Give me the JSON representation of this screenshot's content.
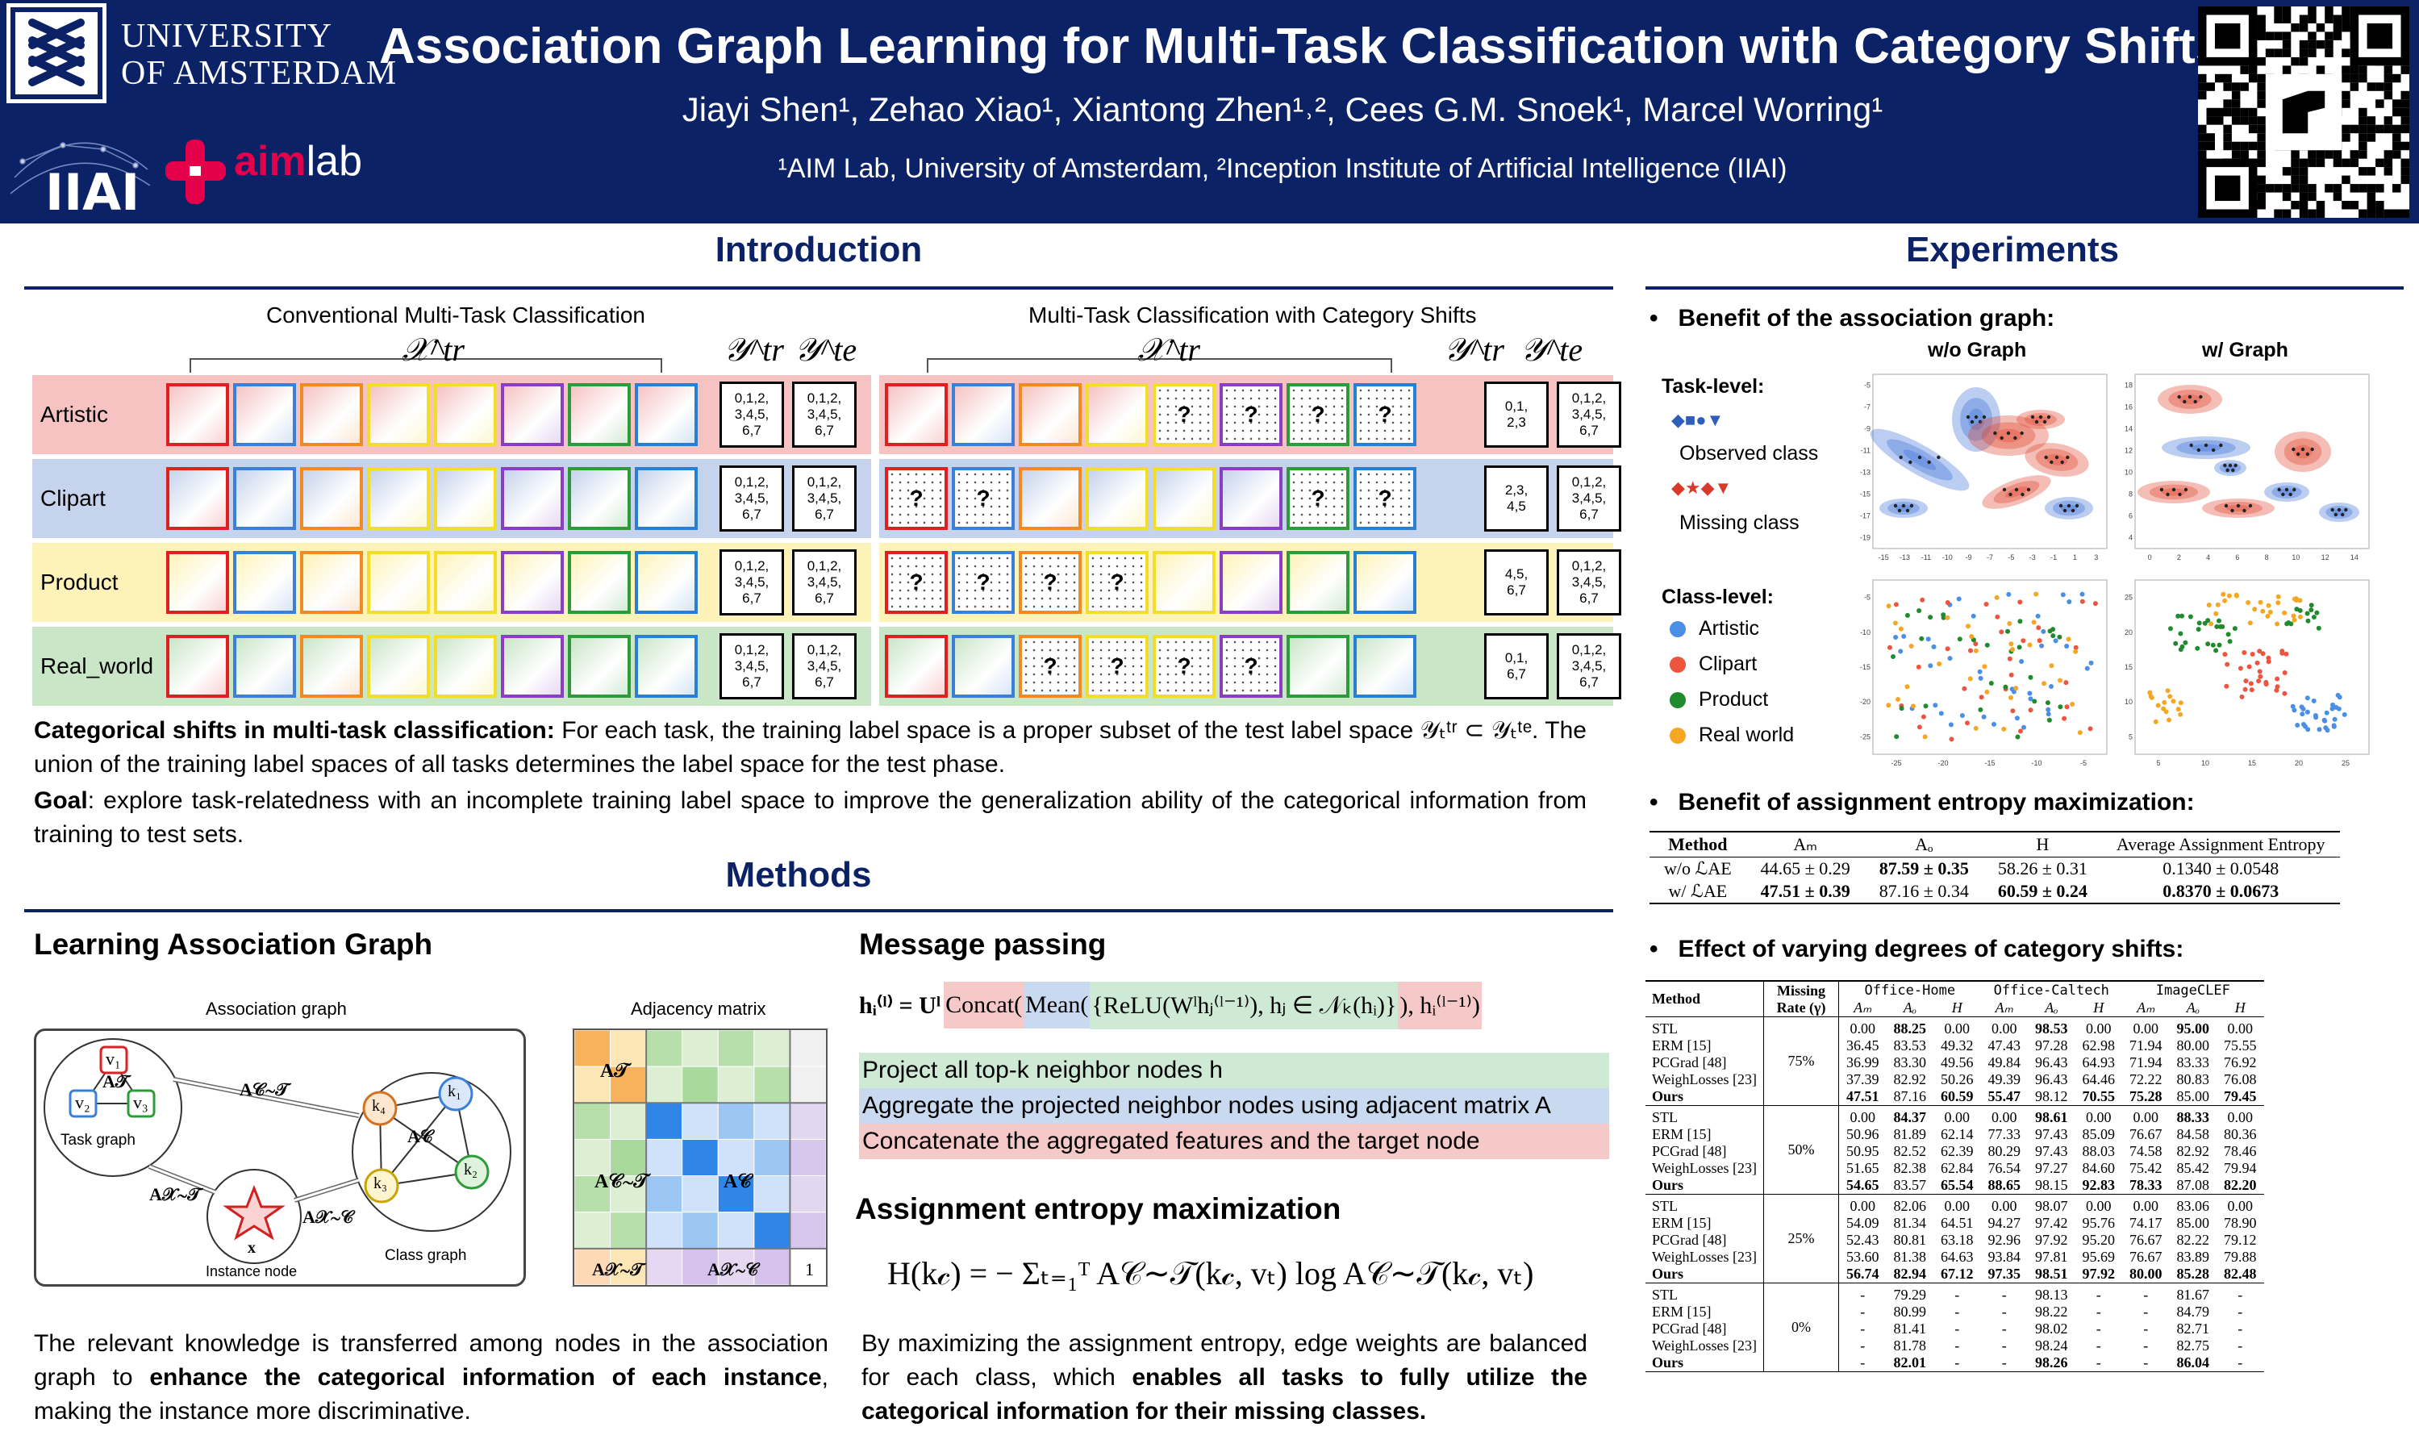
{
  "header": {
    "university": "UNIVERSITY OF AMSTERDAM",
    "university_line1": "UNIVERSITY",
    "university_line2": "OF AMSTERDAM",
    "iiai_logo": "IIAI",
    "aimlab_aim": "aim",
    "aimlab_lab": "lab",
    "title": "Association Graph Learning for Multi-Task Classification with Category Shifts",
    "authors": "Jiayi Shen¹, Zehao Xiao¹, Xiantong Zhen¹˒², Cees G.M. Snoek¹, Marcel Worring¹",
    "affiliations": "¹AIM Lab, University of Amsterdam, ²Inception Institute of Artificial Intelligence (IIAI)",
    "qr_icon": "qr-code-icon"
  },
  "introduction": {
    "title": "Introduction",
    "left_panel_title": "Conventional Multi-Task Classification",
    "right_panel_title": "Multi-Task Classification with Category Shifts",
    "x_label": "𝒳^tr",
    "ytr_label": "𝒴^tr",
    "yte_label": "𝒴^te",
    "tasks": [
      {
        "name": "Artistic",
        "color": "#f6c2c2",
        "conv_tr": "0,1,2,\n3,4,5,\n6,7",
        "conv_te": "0,1,2,\n3,4,5,\n6,7",
        "shift_tr": "0,1,\n2,3",
        "shift_te": "0,1,2,\n3,4,5,\n6,7",
        "missing": [
          4,
          5,
          6,
          7
        ]
      },
      {
        "name": "Clipart",
        "color": "#c6d3ec",
        "conv_tr": "0,1,2,\n3,4,5,\n6,7",
        "conv_te": "0,1,2,\n3,4,5,\n6,7",
        "shift_tr": "2,3,\n4,5",
        "shift_te": "0,1,2,\n3,4,5,\n6,7",
        "missing": [
          0,
          1,
          6,
          7
        ]
      },
      {
        "name": "Product",
        "color": "#fdf3b8",
        "conv_tr": "0,1,2,\n3,4,5,\n6,7",
        "conv_te": "0,1,2,\n3,4,5,\n6,7",
        "shift_tr": "4,5,\n6,7",
        "shift_te": "0,1,2,\n3,4,5,\n6,7",
        "missing": [
          0,
          1,
          2,
          3
        ]
      },
      {
        "name": "Real_world",
        "color": "#c9e6c7",
        "conv_tr": "0,1,2,\n3,4,5,\n6,7",
        "conv_te": "0,1,2,\n3,4,5,\n6,7",
        "shift_tr": "0,1,\n6,7",
        "shift_te": "0,1,2,\n3,4,5,\n6,7",
        "missing": [
          2,
          3,
          4,
          5
        ]
      }
    ],
    "frame_colors": [
      "#e02020",
      "#3c7fd6",
      "#f08a24",
      "#f2dd2b",
      "#f2dd2b",
      "#8a3fc0",
      "#2e9b3b",
      "#2b7fd0"
    ],
    "question_mark": "?",
    "para1_bold": "Categorical shifts in multi-task classification:",
    "para1_text": "For each task, the training label space is a proper subset of the test label space 𝒴ₜᵗʳ ⊂ 𝒴ₜᵗᵉ. The union of the training label spaces of all tasks determines the label space for the test phase.",
    "para2_bold": "Goal",
    "para2_text": ": explore task-relatedness with an incomplete training label space to improve the generalization ability of the categorical information from training to test sets."
  },
  "methods": {
    "title": "Methods",
    "lag_title": "Learning Association Graph",
    "assoc_graph_title": "Association graph",
    "adjacency_title": "Adjacency matrix",
    "task_graph_label": "Task graph",
    "class_graph_label": "Class graph",
    "instance_node_label": "Instance node",
    "node_v1": "v₁",
    "node_v2": "v₂",
    "node_v3": "v₃",
    "node_k1": "k₁",
    "node_k2": "k₂",
    "node_k3": "k₃",
    "node_k4": "k₄",
    "node_x": "x",
    "edge_ct": "A𝒞∼𝒯",
    "edge_xt": "A𝒳∼𝒯",
    "edge_xc": "A𝒳∼𝒞",
    "a_t": "A𝒯",
    "a_c": "A𝒞",
    "adj_at": "A𝒯",
    "adj_act": "A𝒞∼𝒯",
    "adj_ac": "A𝒞",
    "adj_axt": "A𝒳∼𝒯",
    "adj_axc": "A𝒳∼𝒞",
    "adj_one": "1",
    "lag_text_1": "The relevant knowledge is transferred among nodes in the association graph to ",
    "lag_text_bold": "enhance the categorical information of each instance",
    "lag_text_2": ", making the instance more discriminative.",
    "mp_title": "Message passing",
    "mp_formula_lhs": "hᵢ⁽ˡ⁾ = Uˡ",
    "mp_concat": "Concat(",
    "mp_mean": "Mean(",
    "mp_relu": "{ReLU(Wˡhⱼ⁽ˡ⁻¹⁾), hⱼ ∈ 𝒩ₖ(hᵢ)}",
    "mp_tail": "), hᵢ⁽ˡ⁻¹⁾)",
    "mp_item1": "Project all top-k neighbor nodes h",
    "mp_item2": "Aggregate the projected neighbor nodes using adjacent matrix A",
    "mp_item3": "Concatenate the aggregated features and the target node",
    "mp_item_colors": [
      "#cfead4",
      "#c9d9ef",
      "#f6c9c9"
    ],
    "aem_title": "Assignment entropy maximization",
    "aem_formula": "H(k𝒸) = − Σₜ₌₁ᵀ A𝒞∼𝒯(k𝒸, vₜ) log A𝒞∼𝒯(k𝒸, vₜ)",
    "aem_text_1": "By maximizing the assignment entropy, edge weights are balanced for each class, which ",
    "aem_text_bold": "enables all tasks to fully utilize the categorical information for their missing classes."
  },
  "experiments": {
    "title": "Experiments",
    "bullet1": "Benefit of the association graph:",
    "wo_graph": "w/o Graph",
    "w_graph": "w/ Graph",
    "task_level": "Task-level:",
    "observed_class": "Observed class",
    "missing_class": "Missing class",
    "class_level": "Class-level:",
    "legend": [
      {
        "label": "Artistic",
        "color": "#4a8ee6"
      },
      {
        "label": "Clipart",
        "color": "#ee5540"
      },
      {
        "label": "Product",
        "color": "#1f8a2e"
      },
      {
        "label": "Real world",
        "color": "#f5a623"
      }
    ],
    "task_plot_wo_x": [
      "-15",
      "-13",
      "-11",
      "-10",
      "-9",
      "-7",
      "-5",
      "-3",
      "-1",
      "1",
      "3"
    ],
    "task_plot_wo_y": [
      "-5",
      "-7",
      "-9",
      "-11",
      "-13",
      "-15",
      "-17",
      "-19"
    ],
    "task_plot_w_x": [
      "0",
      "2",
      "4",
      "6",
      "8",
      "10",
      "12",
      "14"
    ],
    "task_plot_w_y": [
      "18",
      "16",
      "14",
      "12",
      "10",
      "8",
      "6",
      "4"
    ],
    "class_plot_wo_x": [
      "-25",
      "-20",
      "-15",
      "-10",
      "-5"
    ],
    "class_plot_wo_y": [
      "-5",
      "-10",
      "-15",
      "-20",
      "-25"
    ],
    "class_plot_w_x": [
      "5",
      "10",
      "15",
      "20",
      "25"
    ],
    "class_plot_w_y": [
      "25",
      "20",
      "15",
      "10",
      "5"
    ],
    "bullet2": "Benefit of assignment entropy maximization:",
    "ent_table": {
      "headers": [
        "Method",
        "Aₘ",
        "Aₒ",
        "H",
        "Average Assignment Entropy"
      ],
      "rows": [
        [
          "w/o ℒAE",
          "44.65 ± 0.29",
          "87.59 ± 0.35",
          "58.26 ± 0.31",
          "0.1340 ± 0.0548"
        ],
        [
          "w/ ℒAE",
          "47.51 ± 0.39",
          "87.16 ± 0.34",
          "60.59 ± 0.24",
          "0.8370 ± 0.0673"
        ]
      ]
    },
    "bullet3": "Effect of varying degrees of category shifts:",
    "shift_table": {
      "col_method": "Method",
      "col_missing": "Missing Rate (γ)",
      "datasets": [
        "Office-Home",
        "Office-Caltech",
        "ImageCLEF"
      ],
      "metrics": [
        "Aₘ",
        "Aₒ",
        "H"
      ],
      "groups": [
        {
          "rate": "75%",
          "rows": [
            [
              "STL",
              "0.00",
              "88.25",
              "0.00",
              "0.00",
              "98.53",
              "0.00",
              "0.00",
              "95.00",
              "0.00"
            ],
            [
              "ERM [15]",
              "36.45",
              "83.53",
              "49.32",
              "47.43",
              "97.28",
              "62.98",
              "71.94",
              "80.00",
              "75.55"
            ],
            [
              "PCGrad [48]",
              "36.99",
              "83.30",
              "49.56",
              "49.84",
              "96.43",
              "64.93",
              "71.94",
              "83.33",
              "76.92"
            ],
            [
              "WeighLosses [23]",
              "37.39",
              "82.92",
              "50.26",
              "49.39",
              "96.43",
              "64.46",
              "72.22",
              "80.83",
              "76.08"
            ],
            [
              "Ours",
              "47.51",
              "87.16",
              "60.59",
              "55.47",
              "98.12",
              "70.55",
              "75.28",
              "85.00",
              "79.45"
            ]
          ]
        },
        {
          "rate": "50%",
          "rows": [
            [
              "STL",
              "0.00",
              "84.37",
              "0.00",
              "0.00",
              "98.61",
              "0.00",
              "0.00",
              "88.33",
              "0.00"
            ],
            [
              "ERM [15]",
              "50.96",
              "81.89",
              "62.14",
              "77.33",
              "97.43",
              "85.09",
              "76.67",
              "84.58",
              "80.36"
            ],
            [
              "PCGrad [48]",
              "50.95",
              "82.52",
              "62.39",
              "80.29",
              "97.43",
              "88.03",
              "74.58",
              "82.92",
              "78.46"
            ],
            [
              "WeighLosses [23]",
              "51.65",
              "82.38",
              "62.84",
              "76.54",
              "97.27",
              "84.60",
              "75.42",
              "85.42",
              "79.94"
            ],
            [
              "Ours",
              "54.65",
              "83.57",
              "65.54",
              "88.65",
              "98.15",
              "92.83",
              "78.33",
              "87.08",
              "82.20"
            ]
          ]
        },
        {
          "rate": "25%",
          "rows": [
            [
              "STL",
              "0.00",
              "82.06",
              "0.00",
              "0.00",
              "98.07",
              "0.00",
              "0.00",
              "83.06",
              "0.00"
            ],
            [
              "ERM [15]",
              "54.09",
              "81.34",
              "64.51",
              "94.27",
              "97.42",
              "95.76",
              "74.17",
              "85.00",
              "78.90"
            ],
            [
              "PCGrad [48]",
              "52.43",
              "80.81",
              "63.18",
              "92.96",
              "97.92",
              "95.20",
              "76.67",
              "82.22",
              "79.12"
            ],
            [
              "WeighLosses [23]",
              "53.60",
              "81.38",
              "64.63",
              "93.84",
              "97.81",
              "95.69",
              "76.67",
              "83.89",
              "79.88"
            ],
            [
              "Ours",
              "56.74",
              "82.94",
              "67.12",
              "97.35",
              "98.51",
              "97.92",
              "80.00",
              "85.28",
              "82.48"
            ]
          ]
        },
        {
          "rate": "0%",
          "rows": [
            [
              "STL",
              "-",
              "79.29",
              "-",
              "-",
              "98.13",
              "-",
              "-",
              "81.67",
              "-"
            ],
            [
              "ERM [15]",
              "-",
              "80.99",
              "-",
              "-",
              "98.22",
              "-",
              "-",
              "84.79",
              "-"
            ],
            [
              "PCGrad [48]",
              "-",
              "81.41",
              "-",
              "-",
              "98.02",
              "-",
              "-",
              "82.71",
              "-"
            ],
            [
              "WeighLosses [23]",
              "-",
              "81.78",
              "-",
              "-",
              "98.24",
              "-",
              "-",
              "82.75",
              "-"
            ],
            [
              "Ours",
              "-",
              "82.01",
              "-",
              "-",
              "98.26",
              "-",
              "-",
              "86.04",
              "-"
            ]
          ]
        }
      ]
    }
  },
  "colors": {
    "navy": "#0b2266",
    "aim_pink": "#e4004b",
    "concat_bg": "#f6c9c9",
    "mean_bg": "#c9d9ef",
    "relu_bg": "#cfead4"
  }
}
